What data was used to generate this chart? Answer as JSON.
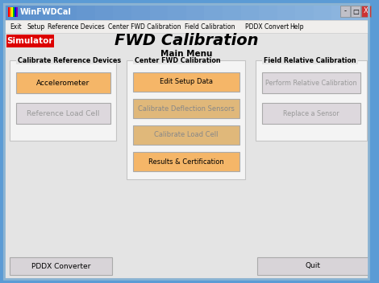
{
  "bg_color": "#5b9bd5",
  "window_bg": "#e4e4e4",
  "title_bar_gradient_left": "#6baee8",
  "title_bar_gradient_right": "#a8c8e8",
  "title_text": "WinFWDCal",
  "menu_items": [
    "Exit",
    "Setup",
    "Reference Devices",
    "Center FWD Calibration",
    "Field Calibration",
    "PDDX Convert",
    "Help"
  ],
  "simulator_label": "Simulator",
  "simulator_color": "#dd0000",
  "main_title": "FWD Calibration",
  "sub_title": "Main Menu",
  "group1_title": "Calibrate Reference Devices",
  "group2_title": "Center FWD Calibration",
  "group3_title": "Field Relative Calibration",
  "btn_orange": "#f5b668",
  "btn_orange_dim": "#e0b87a",
  "btn_gray": "#d8d4d8",
  "btn_gray_dim": "#c8c4c8",
  "group1_buttons": [
    {
      "label": "Accelerometer",
      "color": "#f5b668",
      "tc": "black"
    },
    {
      "label": "Reference Load Cell",
      "color": "#ddd8dd",
      "tc": "#999999"
    }
  ],
  "group2_buttons": [
    {
      "label": "Edit Setup Data",
      "color": "#f5b668",
      "tc": "black"
    },
    {
      "label": "Calibrate Deflection Sensors",
      "color": "#e0b87a",
      "tc": "#888888"
    },
    {
      "label": "Calibrate Load Cell",
      "color": "#e0b87a",
      "tc": "#888888"
    },
    {
      "label": "Results & Certification",
      "color": "#f5b668",
      "tc": "black"
    }
  ],
  "group3_buttons": [
    {
      "label": "Perform Relative Calibration",
      "color": "#ddd8dd",
      "tc": "#999999"
    },
    {
      "label": "Replace a Sensor",
      "color": "#ddd8dd",
      "tc": "#999999"
    }
  ],
  "bottom_buttons": [
    "PDDX Converter",
    "Quit"
  ]
}
